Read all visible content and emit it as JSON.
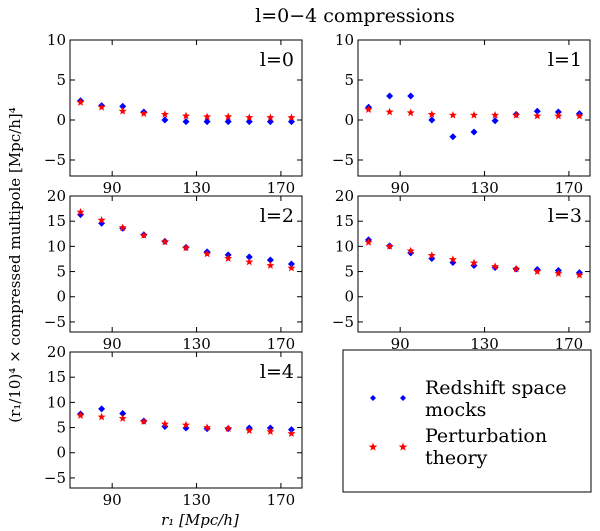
{
  "figure": {
    "title": "l=0−4  compressions",
    "xlabel": "r₁  [Mpc/h]",
    "ylabel": "(r₁/10)⁴ × compressed multipole [Mpc/h]⁴"
  },
  "legend": {
    "entries": [
      {
        "label_line1": "Redshift space",
        "label_line2": "mocks",
        "color": "#0000ff",
        "marker": "diamond"
      },
      {
        "label_line1": "Perturbation",
        "label_line2": "theory",
        "color": "#ff0000",
        "marker": "star"
      }
    ]
  },
  "chart_data": [
    {
      "type": "scatter",
      "title": "l=0",
      "x": [
        75,
        85,
        95,
        105,
        115,
        125,
        135,
        145,
        155,
        165,
        175
      ],
      "xticks": [
        90,
        130,
        170
      ],
      "xlim": [
        70,
        180
      ],
      "ylim": [
        -7,
        10
      ],
      "yticks": [
        -5,
        0,
        5,
        10
      ],
      "grid": false,
      "series": [
        {
          "name": "Redshift space mocks",
          "values": [
            2.4,
            1.8,
            1.7,
            1.0,
            0.0,
            -0.2,
            -0.2,
            -0.2,
            -0.2,
            -0.2,
            -0.2
          ]
        },
        {
          "name": "Perturbation theory",
          "values": [
            2.2,
            1.6,
            1.1,
            0.8,
            0.7,
            0.5,
            0.4,
            0.4,
            0.3,
            0.3,
            0.3
          ]
        }
      ]
    },
    {
      "type": "scatter",
      "title": "l=1",
      "x": [
        75,
        85,
        95,
        105,
        115,
        125,
        135,
        145,
        155,
        165,
        175
      ],
      "xticks": [
        90,
        130,
        170
      ],
      "xlim": [
        70,
        180
      ],
      "ylim": [
        -7,
        10
      ],
      "yticks": [
        -5,
        0,
        5,
        10
      ],
      "grid": false,
      "series": [
        {
          "name": "Redshift space mocks",
          "values": [
            1.6,
            3.0,
            3.0,
            0.0,
            -2.1,
            -1.5,
            -0.1,
            0.7,
            1.1,
            1.0,
            0.8
          ]
        },
        {
          "name": "Perturbation theory",
          "values": [
            1.3,
            1.0,
            0.9,
            0.7,
            0.6,
            0.6,
            0.6,
            0.6,
            0.5,
            0.5,
            0.5
          ]
        }
      ]
    },
    {
      "type": "scatter",
      "title": "l=2",
      "x": [
        75,
        85,
        95,
        105,
        115,
        125,
        135,
        145,
        155,
        165,
        175
      ],
      "xticks": [
        90,
        130,
        170
      ],
      "xlim": [
        70,
        180
      ],
      "ylim": [
        -7,
        20
      ],
      "yticks": [
        -5,
        0,
        5,
        10,
        15,
        20
      ],
      "grid": false,
      "series": [
        {
          "name": "Redshift space mocks",
          "values": [
            16.3,
            14.6,
            13.6,
            12.3,
            11.0,
            9.8,
            8.9,
            8.3,
            7.9,
            7.3,
            6.5
          ]
        },
        {
          "name": "Perturbation theory",
          "values": [
            16.8,
            15.2,
            13.7,
            12.2,
            10.9,
            9.7,
            8.5,
            7.6,
            6.9,
            6.2,
            5.7
          ]
        }
      ]
    },
    {
      "type": "scatter",
      "title": "l=3",
      "x": [
        75,
        85,
        95,
        105,
        115,
        125,
        135,
        145,
        155,
        165,
        175
      ],
      "xticks": [
        90,
        130,
        170
      ],
      "xlim": [
        70,
        180
      ],
      "ylim": [
        -7,
        20
      ],
      "yticks": [
        -5,
        0,
        5,
        10,
        15,
        20
      ],
      "grid": false,
      "series": [
        {
          "name": "Redshift space mocks",
          "values": [
            11.3,
            10.1,
            8.7,
            7.6,
            6.8,
            6.2,
            5.8,
            5.5,
            5.4,
            5.2,
            4.8
          ]
        },
        {
          "name": "Perturbation theory",
          "values": [
            10.8,
            10.0,
            9.1,
            8.2,
            7.4,
            6.7,
            6.0,
            5.5,
            5.0,
            4.6,
            4.3
          ]
        }
      ]
    },
    {
      "type": "scatter",
      "title": "l=4",
      "x": [
        75,
        85,
        95,
        105,
        115,
        125,
        135,
        145,
        155,
        165,
        175
      ],
      "xticks": [
        90,
        130,
        170
      ],
      "xlim": [
        70,
        180
      ],
      "ylim": [
        -7,
        20
      ],
      "yticks": [
        -5,
        0,
        5,
        10,
        15,
        20
      ],
      "grid": false,
      "series": [
        {
          "name": "Redshift space mocks",
          "values": [
            7.7,
            8.7,
            7.8,
            6.3,
            5.2,
            4.9,
            4.8,
            4.8,
            4.9,
            4.9,
            4.6
          ]
        },
        {
          "name": "Perturbation theory",
          "values": [
            7.4,
            7.1,
            6.8,
            6.2,
            5.7,
            5.5,
            5.0,
            4.8,
            4.4,
            4.2,
            3.8
          ]
        }
      ]
    }
  ]
}
